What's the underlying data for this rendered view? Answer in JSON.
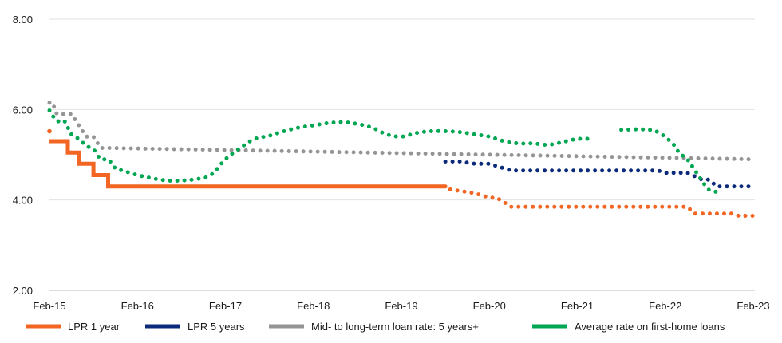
{
  "chart_data": {
    "type": "line",
    "title": "",
    "xlabel": "",
    "ylabel": "",
    "ylim": [
      2,
      8
    ],
    "yticks": [
      "2.00",
      "4.00",
      "6.00",
      "8.00"
    ],
    "xticks": [
      "Feb-15",
      "Feb-16",
      "Feb-17",
      "Feb-18",
      "Feb-19",
      "Feb-20",
      "Feb-21",
      "Feb-22",
      "Feb-23"
    ],
    "xrange_months": [
      0,
      96
    ],
    "grid": "horizontal",
    "legend_position": "bottom",
    "series": [
      {
        "name": "LPR 1 year",
        "color": "#f26522",
        "style": "solid-then-dotted",
        "solid_until": 54,
        "x": [
          0,
          0,
          0.5,
          2.5,
          2.5,
          4,
          4,
          6,
          6,
          8,
          8,
          54,
          54,
          58,
          60,
          61,
          63,
          87,
          88,
          93,
          94,
          96
        ],
        "y": [
          5.52,
          5.3,
          5.3,
          5.3,
          5.05,
          5.05,
          4.8,
          4.8,
          4.55,
          4.55,
          4.3,
          4.3,
          4.25,
          4.15,
          4.05,
          4.05,
          3.85,
          3.85,
          3.7,
          3.7,
          3.65,
          3.65
        ]
      },
      {
        "name": "LPR 5 years",
        "color": "#0b2a7a",
        "style": "dotted",
        "x": [
          54,
          56,
          58,
          60,
          61,
          63,
          83,
          84,
          86,
          87,
          89,
          90,
          91,
          93,
          96
        ],
        "y": [
          4.85,
          4.85,
          4.8,
          4.8,
          4.75,
          4.65,
          4.65,
          4.6,
          4.6,
          4.6,
          4.45,
          4.45,
          4.3,
          4.3,
          4.3
        ]
      },
      {
        "name": "Mid- to long-term loan rate: 5 years+",
        "color": "#959595",
        "style": "dotted",
        "x": [
          0,
          0.4,
          1,
          3,
          4,
          5,
          6,
          7,
          8,
          96
        ],
        "y": [
          6.15,
          6.15,
          5.9,
          5.9,
          5.65,
          5.4,
          5.4,
          5.15,
          5.15,
          4.9
        ]
      },
      {
        "name": "Average rate on first-home loans",
        "color": "#00a651",
        "style": "dotted",
        "x": [
          0,
          1,
          2,
          3,
          4,
          5,
          6,
          7,
          8,
          9,
          10,
          12,
          14,
          16,
          18,
          20,
          22,
          24,
          26,
          28,
          30,
          32,
          34,
          36,
          38,
          40,
          42,
          44,
          46,
          48,
          50,
          52,
          54,
          56,
          58,
          60,
          62,
          64,
          66,
          68,
          70,
          72,
          74
        ],
        "y": [
          5.98,
          5.75,
          5.75,
          5.45,
          5.35,
          5.2,
          5.12,
          4.9,
          4.9,
          4.7,
          4.65,
          4.55,
          4.48,
          4.43,
          4.43,
          4.46,
          4.55,
          4.9,
          5.15,
          5.35,
          5.42,
          5.52,
          5.6,
          5.65,
          5.7,
          5.72,
          5.68,
          5.6,
          5.45,
          5.4,
          5.48,
          5.52,
          5.52,
          5.5,
          5.45,
          5.4,
          5.3,
          5.25,
          5.25,
          5.22,
          5.28,
          5.35,
          5.35
        ]
      },
      {
        "name": "Average rate on first-home loans",
        "color": "#00a651",
        "style": "dotted",
        "x": [
          78,
          81,
          83,
          85,
          86,
          87,
          89,
          90,
          91
        ],
        "y": [
          5.55,
          5.56,
          5.5,
          5.25,
          5.02,
          4.9,
          4.42,
          4.22,
          4.18
        ]
      }
    ],
    "legend": [
      {
        "name": "LPR 1 year",
        "color": "#f26522"
      },
      {
        "name": "LPR 5 years",
        "color": "#0b2a7a"
      },
      {
        "name": "Mid- to long-term loan rate: 5 years+",
        "color": "#959595"
      },
      {
        "name": "Average rate on first-home loans",
        "color": "#00a651"
      }
    ]
  }
}
